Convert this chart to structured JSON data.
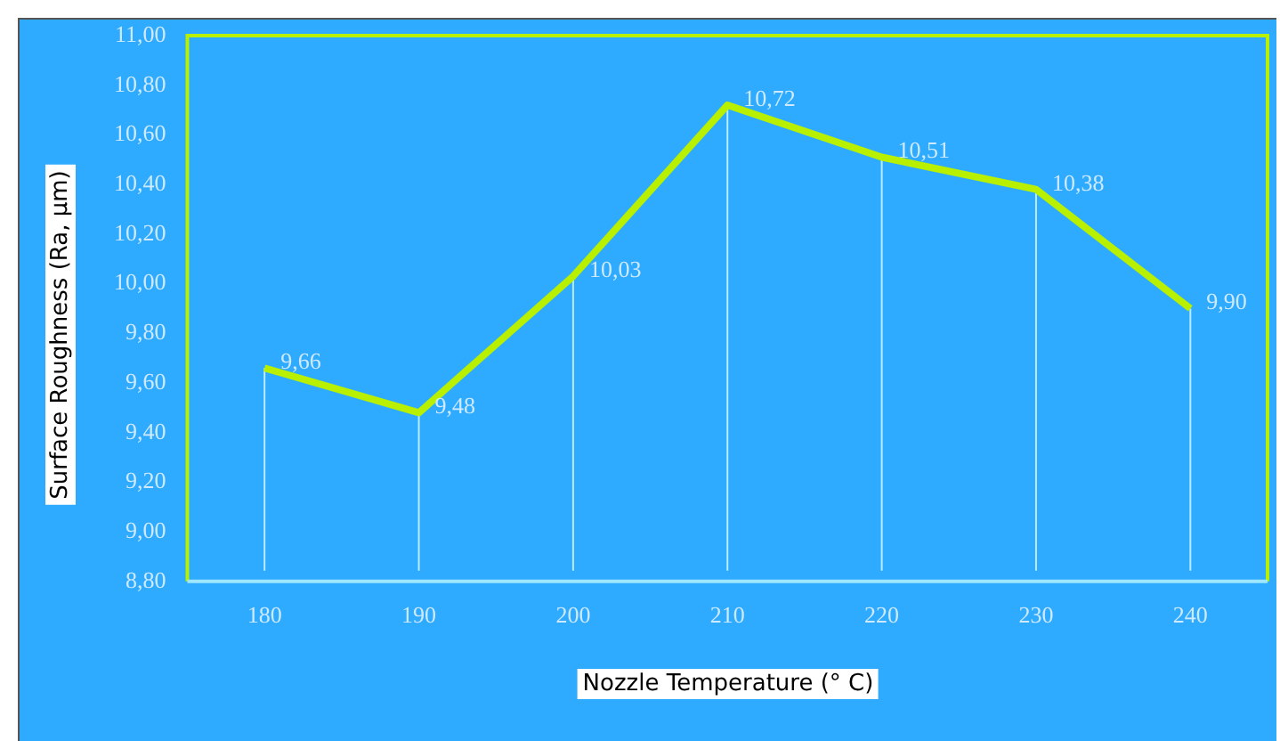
{
  "chart_data": {
    "type": "line",
    "xlabel": "Nozzle Temperature (° C)",
    "ylabel": "Surface Roughness (Ra, µm)",
    "categories": [
      "180",
      "190",
      "200",
      "210",
      "220",
      "230",
      "240"
    ],
    "series": [
      {
        "color": "#b8f000",
        "values": [
          9.66,
          9.48,
          10.03,
          10.72,
          10.51,
          10.38,
          9.9
        ],
        "value_labels": [
          "9,66",
          "9,48",
          "10,03",
          "10,72",
          "10,51",
          "10,38",
          "9,90"
        ]
      }
    ],
    "ylim": [
      8.8,
      11.0
    ],
    "yticks": [
      {
        "value": 8.8,
        "label": "8,80"
      },
      {
        "value": 9.0,
        "label": "9,00"
      },
      {
        "value": 9.2,
        "label": "9,20"
      },
      {
        "value": 9.4,
        "label": "9,40"
      },
      {
        "value": 9.6,
        "label": "9,60"
      },
      {
        "value": 9.8,
        "label": "9,80"
      },
      {
        "value": 10.0,
        "label": "10,00"
      },
      {
        "value": 10.2,
        "label": "10,20"
      },
      {
        "value": 10.4,
        "label": "10,40"
      },
      {
        "value": 10.6,
        "label": "10,60"
      },
      {
        "value": 10.8,
        "label": "10,80"
      },
      {
        "value": 11.0,
        "label": "11,00"
      }
    ],
    "grid": "x",
    "marker": "none",
    "line_style": "solid"
  }
}
